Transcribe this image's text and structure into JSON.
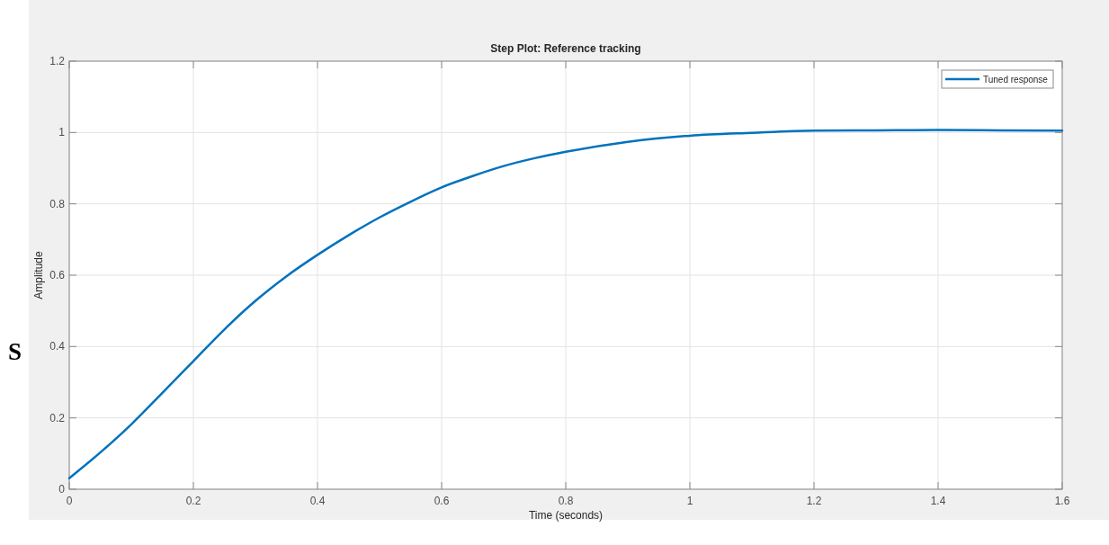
{
  "chart_data": {
    "type": "line",
    "title": "Step Plot: Reference tracking",
    "xlabel": "Time (seconds)",
    "ylabel": "Amplitude",
    "annotations": [
      "S"
    ],
    "x": [
      0,
      0.05,
      0.1,
      0.15,
      0.2,
      0.25,
      0.3,
      0.35,
      0.4,
      0.45,
      0.5,
      0.55,
      0.6,
      0.65,
      0.7,
      0.75,
      0.8,
      0.9,
      1.0,
      1.1,
      1.2,
      1.3,
      1.4,
      1.5,
      1.6
    ],
    "series": [
      {
        "name": "Tuned response",
        "color": "#0072bd",
        "values": [
          0.031,
          0.103,
          0.182,
          0.27,
          0.359,
          0.448,
          0.528,
          0.597,
          0.657,
          0.712,
          0.762,
          0.806,
          0.846,
          0.878,
          0.906,
          0.928,
          0.946,
          0.974,
          0.991,
          0.999,
          1.005,
          1.006,
          1.007,
          1.006,
          1.005
        ]
      }
    ],
    "xlim": [
      0,
      1.6
    ],
    "xticks": [
      0,
      0.2,
      0.4,
      0.6,
      0.8,
      1,
      1.2,
      1.4,
      1.6
    ],
    "ylim": [
      0,
      1.2
    ],
    "yticks": [
      0,
      0.2,
      0.4,
      0.6,
      0.8,
      1,
      1.2
    ],
    "grid": true,
    "legend": "top right",
    "line_style": "solid",
    "marker": "none"
  }
}
